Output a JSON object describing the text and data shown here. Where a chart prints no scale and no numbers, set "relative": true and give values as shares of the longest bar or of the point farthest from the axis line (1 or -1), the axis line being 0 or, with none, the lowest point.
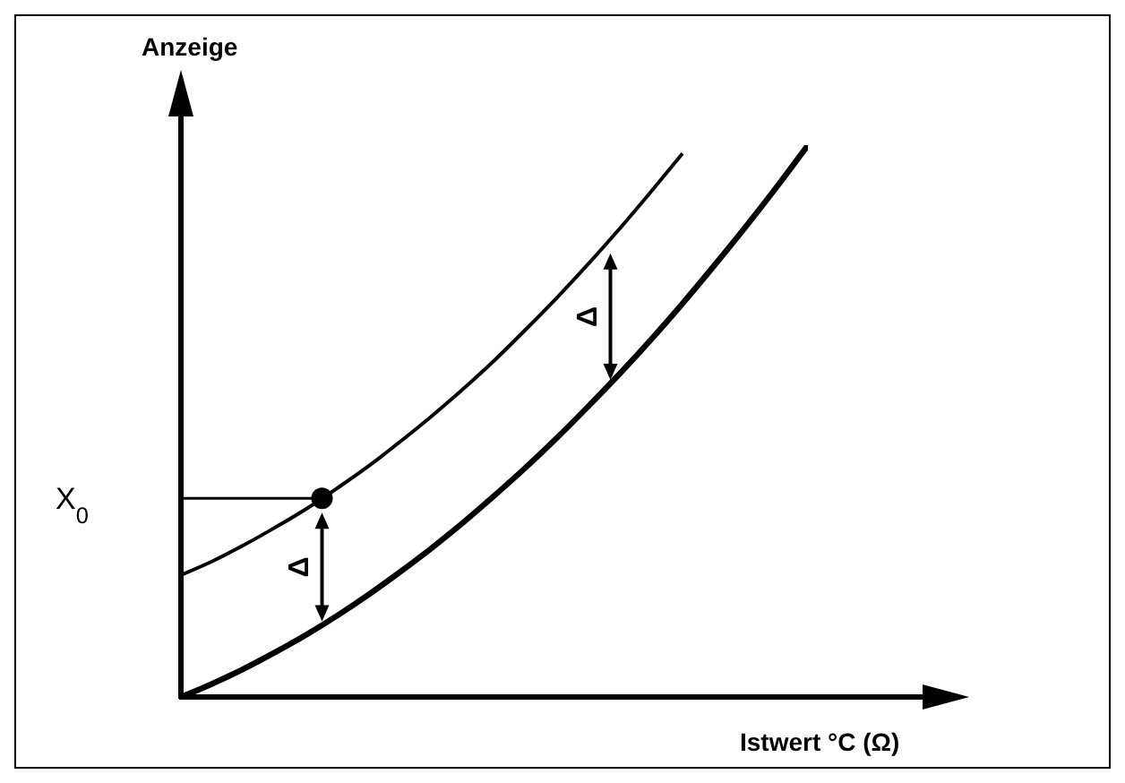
{
  "chart_data": {
    "type": "line",
    "relative": true,
    "tick_labels": false,
    "xlabel": "Istwert °C (Ω)",
    "ylabel": "Anzeige",
    "categories": [
      null,
      null,
      null,
      null,
      null,
      null,
      null,
      null,
      null,
      null,
      null,
      null,
      null,
      null,
      null,
      null,
      null,
      null,
      null,
      null,
      null
    ],
    "series": [
      {
        "color": "#000000",
        "values": [
          0.221,
          0.246,
          0.275,
          0.307,
          0.341,
          0.379,
          0.419,
          0.463,
          0.509,
          0.558,
          0.61,
          0.666,
          0.724,
          0.785,
          0.849,
          0.916,
          0.985,
          null,
          null,
          null,
          null
        ]
      },
      {
        "color": "#000000",
        "values": [
          0,
          0.024,
          0.051,
          0.081,
          0.113,
          0.148,
          0.186,
          0.227,
          0.27,
          0.316,
          0.365,
          0.416,
          0.47,
          0.527,
          0.586,
          0.648,
          0.713,
          0.781,
          0.851,
          0.924,
          1
        ]
      }
    ],
    "annotations": [
      "X$_{0}$",
      "Δ",
      "Δ"
    ]
  }
}
